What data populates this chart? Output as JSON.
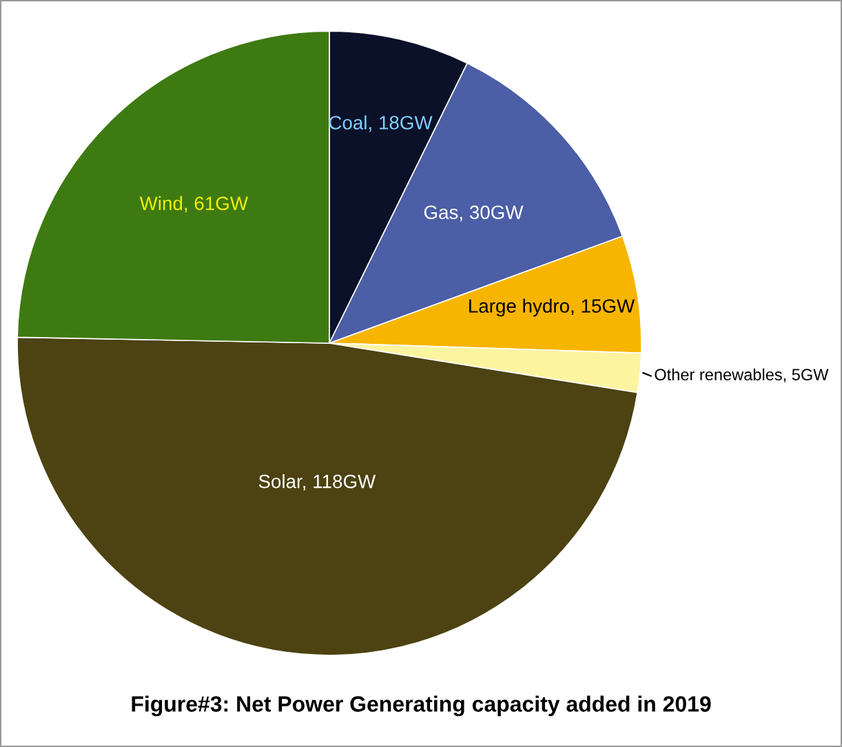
{
  "chart_data": {
    "type": "pie",
    "title": "Figure#3: Net Power Generating capacity added in 2019",
    "categories": [
      "Coal",
      "Gas",
      "Large hydro",
      "Other renewables",
      "Solar",
      "Wind"
    ],
    "values": [
      18,
      30,
      15,
      5,
      118,
      61
    ],
    "colors": [
      "#0b1128",
      "#4b5ea6",
      "#f7b500",
      "#fdf4a0",
      "#4c4212",
      "#3e7a12"
    ],
    "value_labels": [
      "18GW",
      "30GW",
      "15GW",
      "5GW",
      "118GW",
      "61GW"
    ],
    "legend": false
  }
}
